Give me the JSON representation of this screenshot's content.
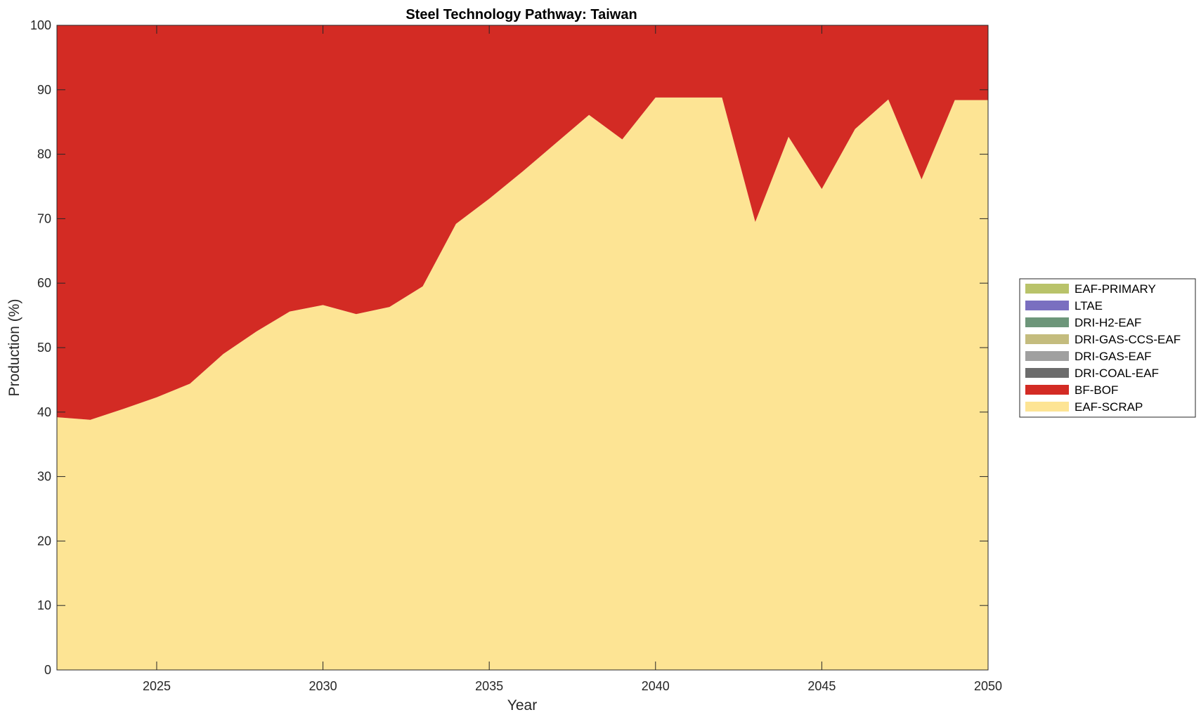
{
  "chart_data": {
    "type": "area",
    "stacked": true,
    "title": "Steel Technology Pathway: Taiwan",
    "xlabel": "Year",
    "ylabel": "Production (%)",
    "xlim": [
      2022,
      2050
    ],
    "ylim": [
      0,
      100
    ],
    "xticks": [
      2025,
      2030,
      2035,
      2040,
      2045,
      2050
    ],
    "yticks": [
      0,
      10,
      20,
      30,
      40,
      50,
      60,
      70,
      80,
      90,
      100
    ],
    "grid": false,
    "legend_position": "right",
    "x": [
      2022,
      2023,
      2024,
      2025,
      2026,
      2027,
      2028,
      2029,
      2030,
      2031,
      2032,
      2033,
      2034,
      2035,
      2036,
      2037,
      2038,
      2039,
      2040,
      2041,
      2042,
      2043,
      2044,
      2045,
      2046,
      2047,
      2048,
      2049,
      2050
    ],
    "series": [
      {
        "name": "EAF-SCRAP",
        "color": "#FDE494",
        "values": [
          39.2,
          38.8,
          40.5,
          42.3,
          44.4,
          49.0,
          52.5,
          55.6,
          56.6,
          55.2,
          56.3,
          59.5,
          69.2,
          73.1,
          77.3,
          81.7,
          86.1,
          82.3,
          88.8,
          88.8,
          88.8,
          69.5,
          82.7,
          74.6,
          83.9,
          88.5,
          76.1,
          88.4,
          88.4
        ]
      },
      {
        "name": "BF-BOF",
        "color": "#D32B24",
        "values": [
          60.8,
          61.2,
          59.5,
          57.7,
          55.6,
          51.0,
          47.5,
          44.4,
          43.4,
          44.8,
          43.7,
          40.5,
          30.8,
          26.9,
          22.7,
          18.3,
          13.9,
          17.7,
          11.2,
          11.2,
          11.2,
          30.5,
          17.3,
          25.4,
          16.1,
          11.5,
          23.9,
          11.6,
          11.6
        ]
      },
      {
        "name": "DRI-COAL-EAF",
        "color": "#6C6C6C",
        "values": [
          0,
          0,
          0,
          0,
          0,
          0,
          0,
          0,
          0,
          0,
          0,
          0,
          0,
          0,
          0,
          0,
          0,
          0,
          0,
          0,
          0,
          0,
          0,
          0,
          0,
          0,
          0,
          0,
          0
        ]
      },
      {
        "name": "DRI-GAS-EAF",
        "color": "#A0A0A0",
        "values": [
          0,
          0,
          0,
          0,
          0,
          0,
          0,
          0,
          0,
          0,
          0,
          0,
          0,
          0,
          0,
          0,
          0,
          0,
          0,
          0,
          0,
          0,
          0,
          0,
          0,
          0,
          0,
          0,
          0
        ]
      },
      {
        "name": "DRI-GAS-CCS-EAF",
        "color": "#C4BC7E",
        "values": [
          0,
          0,
          0,
          0,
          0,
          0,
          0,
          0,
          0,
          0,
          0,
          0,
          0,
          0,
          0,
          0,
          0,
          0,
          0,
          0,
          0,
          0,
          0,
          0,
          0,
          0,
          0,
          0,
          0
        ]
      },
      {
        "name": "DRI-H2-EAF",
        "color": "#6D967A",
        "values": [
          0,
          0,
          0,
          0,
          0,
          0,
          0,
          0,
          0,
          0,
          0,
          0,
          0,
          0,
          0,
          0,
          0,
          0,
          0,
          0,
          0,
          0,
          0,
          0,
          0,
          0,
          0,
          0,
          0
        ]
      },
      {
        "name": "LTAE",
        "color": "#7A6FC0",
        "values": [
          0,
          0,
          0,
          0,
          0,
          0,
          0,
          0,
          0,
          0,
          0,
          0,
          0,
          0,
          0,
          0,
          0,
          0,
          0,
          0,
          0,
          0,
          0,
          0,
          0,
          0,
          0,
          0,
          0
        ]
      },
      {
        "name": "EAF-PRIMARY",
        "color": "#B9C36A",
        "values": [
          0,
          0,
          0,
          0,
          0,
          0,
          0,
          0,
          0,
          0,
          0,
          0,
          0,
          0,
          0,
          0,
          0,
          0,
          0,
          0,
          0,
          0,
          0,
          0,
          0,
          0,
          0,
          0,
          0
        ]
      }
    ],
    "legend_order": [
      "EAF-PRIMARY",
      "LTAE",
      "DRI-H2-EAF",
      "DRI-GAS-CCS-EAF",
      "DRI-GAS-EAF",
      "DRI-COAL-EAF",
      "BF-BOF",
      "EAF-SCRAP"
    ]
  }
}
